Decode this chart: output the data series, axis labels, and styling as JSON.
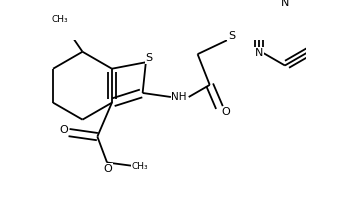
{
  "background": "#ffffff",
  "line_color": "#000000",
  "bond_width": 1.3,
  "dbo": 0.013,
  "figsize": [
    3.38,
    2.11
  ],
  "dpi": 100,
  "xlim": [
    0,
    3.38
  ],
  "ylim": [
    0,
    2.11
  ]
}
